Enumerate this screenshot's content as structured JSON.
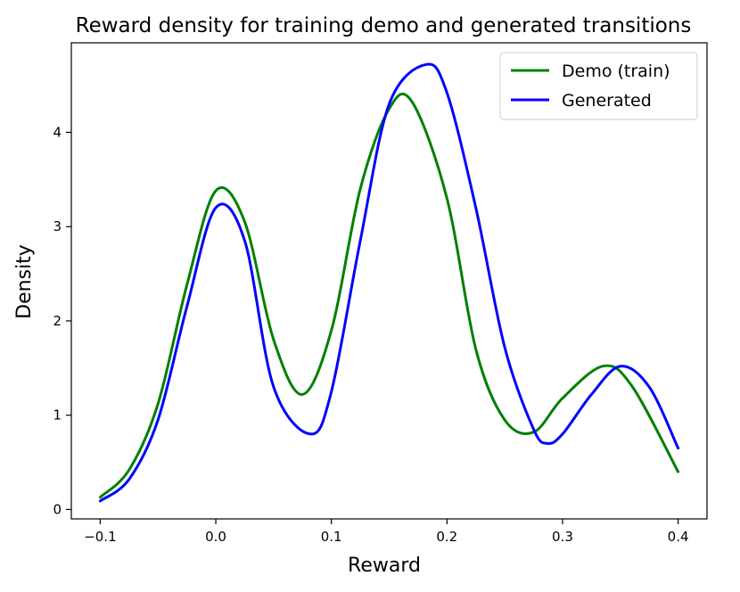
{
  "chart_data": {
    "type": "line",
    "title": "Reward density for training demo and generated transitions",
    "xlabel": "Reward",
    "ylabel": "Density",
    "xlim": [
      -0.125,
      0.425
    ],
    "ylim": [
      -0.1,
      4.95
    ],
    "xticks": [
      -0.1,
      0.0,
      0.1,
      0.2,
      0.3,
      0.4
    ],
    "xtick_labels": [
      "−0.1",
      "0.0",
      "0.1",
      "0.2",
      "0.3",
      "0.4"
    ],
    "yticks": [
      0,
      1,
      2,
      3,
      4
    ],
    "ytick_labels": [
      "0",
      "1",
      "2",
      "3",
      "4"
    ],
    "grid": false,
    "legend_position": "top-right",
    "series": [
      {
        "name": "Demo (train)",
        "color": "#008000",
        "x": [
          -0.1,
          -0.075,
          -0.05,
          -0.025,
          0.0,
          0.025,
          0.05,
          0.075,
          0.1,
          0.125,
          0.15,
          0.17,
          0.2,
          0.225,
          0.25,
          0.275,
          0.3,
          0.335,
          0.36,
          0.4
        ],
        "y": [
          0.13,
          0.42,
          1.12,
          2.38,
          3.38,
          3.05,
          1.8,
          1.22,
          1.9,
          3.4,
          4.25,
          4.32,
          3.3,
          1.7,
          0.95,
          0.82,
          1.18,
          1.52,
          1.31,
          0.4
        ]
      },
      {
        "name": "Generated",
        "color": "#0000ff",
        "x": [
          -0.1,
          -0.075,
          -0.05,
          -0.025,
          0.0,
          0.025,
          0.05,
          0.082,
          0.1,
          0.125,
          0.15,
          0.182,
          0.2,
          0.225,
          0.25,
          0.275,
          0.287,
          0.3,
          0.325,
          0.35,
          0.375,
          0.4
        ],
        "y": [
          0.09,
          0.32,
          0.95,
          2.15,
          3.2,
          2.85,
          1.3,
          0.8,
          1.25,
          2.85,
          4.3,
          4.72,
          4.42,
          3.2,
          1.72,
          0.85,
          0.7,
          0.8,
          1.22,
          1.52,
          1.3,
          0.65
        ]
      }
    ]
  }
}
